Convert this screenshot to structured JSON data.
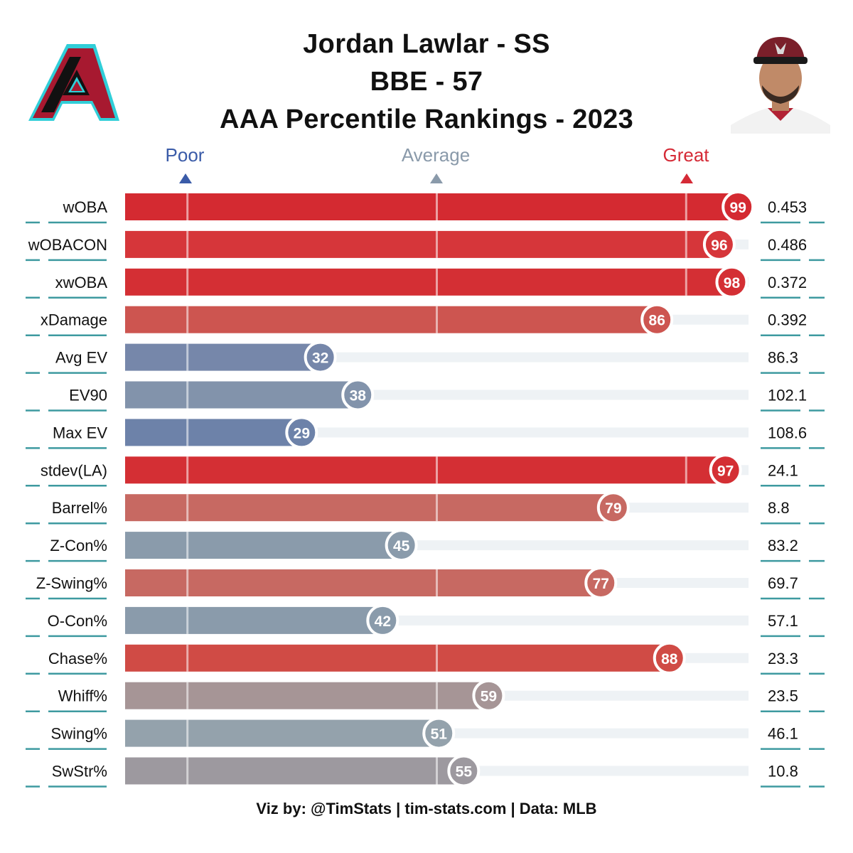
{
  "header": {
    "title_lines": [
      "Jordan Lawlar - SS",
      "BBE - 57",
      "AAA Percentile Rankings - 2023"
    ]
  },
  "logo": {
    "name": "arizona-diamondbacks-logo",
    "colors": {
      "primary": "#a71930",
      "accent": "#30ced8",
      "dark": "#000000"
    }
  },
  "headshot": {
    "name": "player-headshot"
  },
  "scale": {
    "poor": {
      "label": "Poor",
      "color": "#3a5ba8"
    },
    "average": {
      "label": "Average",
      "color": "#8a9aaa"
    },
    "great": {
      "label": "Great",
      "color": "#d52a36"
    }
  },
  "chart_data": {
    "type": "bar",
    "orientation": "horizontal",
    "xlim": [
      0,
      100
    ],
    "reference_lines": [
      10,
      50,
      90
    ],
    "categories": [
      "wOBA",
      "wOBACON",
      "xwOBA",
      "xDamage",
      "Avg EV",
      "EV90",
      "Max EV",
      "stdev(LA)",
      "Barrel%",
      "Z-Con%",
      "Z-Swing%",
      "O-Con%",
      "Chase%",
      "Whiff%",
      "Swing%",
      "SwStr%"
    ],
    "percentiles": [
      99,
      96,
      98,
      86,
      32,
      38,
      29,
      97,
      79,
      45,
      77,
      42,
      88,
      59,
      51,
      55
    ],
    "stat_values": [
      "0.453",
      "0.486",
      "0.372",
      "0.392",
      "86.3",
      "102.1",
      "108.6",
      "24.1",
      "8.8",
      "83.2",
      "69.7",
      "57.1",
      "23.3",
      "23.5",
      "46.1",
      "10.8"
    ],
    "bar_colors": [
      "#d42a31",
      "#d6363a",
      "#d42f34",
      "#cd5550",
      "#7687aa",
      "#8293ab",
      "#6d82a9",
      "#d42f34",
      "#c76962",
      "#8a9bab",
      "#c76962",
      "#8a9bab",
      "#d04b45",
      "#a69596",
      "#94a2ac",
      "#9d999f"
    ],
    "track_color": "#eef2f5",
    "tick_color": "#3e9aa0"
  },
  "footer": {
    "text": "Viz by: @TimStats | tim-stats.com | Data: MLB"
  }
}
